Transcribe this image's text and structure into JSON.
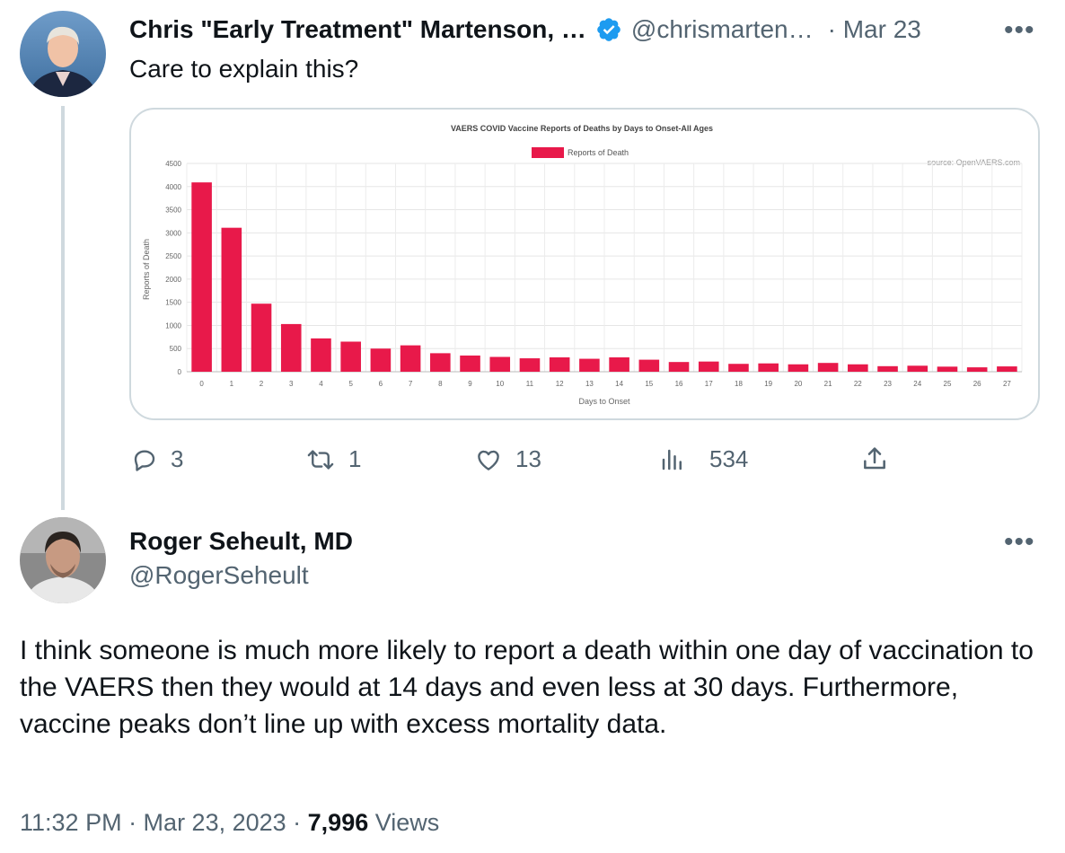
{
  "tweet1": {
    "author_name": "Chris \"Early Treatment\" Martenson, …",
    "verified_icon": "verified-badge-icon",
    "handle": "@chrismarten…",
    "date": "· Mar 23",
    "more": "•••",
    "text": "Care to explain this?",
    "actions": {
      "reply_count": "3",
      "retweet_count": "1",
      "like_count": "13",
      "views_count": "534"
    }
  },
  "tweet2": {
    "author_name": "Roger Seheult, MD",
    "handle": "@RogerSeheult",
    "more": "•••",
    "text": "I think someone is much more likely to report a death within one day of vaccination to the VAERS then they would at 14 days and even less at 30 days.  Furthermore, vaccine peaks don’t line up with excess mortality data.",
    "time": "11:32 PM · Mar 23, 2023 · ",
    "views_count": "7,996",
    "views_label": "Views"
  },
  "colors": {
    "accent": "#1d9bf0",
    "bar": "#e8194a",
    "gray": "#536471"
  },
  "chart_data": {
    "type": "bar",
    "title": "VAERS COVID Vaccine Reports of Deaths by Days to Onset-All Ages",
    "legend": "Reports of Death",
    "source": "source: OpenVAERS.com",
    "xlabel": "Days to Onset",
    "ylabel": "Reports of Death",
    "ylim": [
      0,
      4500
    ],
    "yticks": [
      0,
      500,
      1000,
      1500,
      2000,
      2500,
      3000,
      3500,
      4000,
      4500
    ],
    "categories": [
      "0",
      "1",
      "2",
      "3",
      "4",
      "5",
      "6",
      "7",
      "8",
      "9",
      "10",
      "11",
      "12",
      "13",
      "14",
      "15",
      "16",
      "17",
      "18",
      "19",
      "20",
      "21",
      "22",
      "23",
      "24",
      "25",
      "26",
      "27"
    ],
    "values": [
      4090,
      3110,
      1470,
      1030,
      720,
      650,
      500,
      570,
      400,
      350,
      320,
      290,
      310,
      280,
      310,
      260,
      210,
      220,
      170,
      180,
      160,
      190,
      160,
      120,
      130,
      110,
      95,
      115
    ]
  }
}
